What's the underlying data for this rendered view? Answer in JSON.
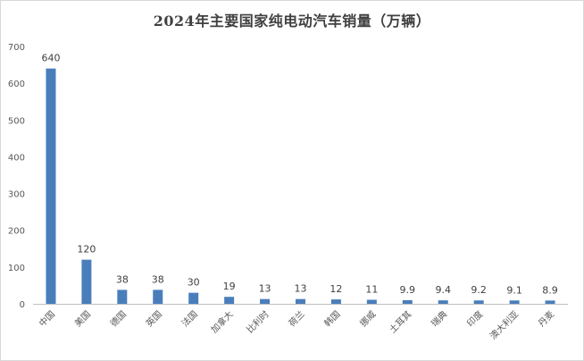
{
  "chart_data": {
    "type": "bar",
    "title": "2024年主要国家纯电动汽车销量（万辆）",
    "xlabel": "",
    "ylabel": "",
    "categories": [
      "中国",
      "美国",
      "德国",
      "英国",
      "法国",
      "加拿大",
      "比利时",
      "荷兰",
      "韩国",
      "挪威",
      "土耳其",
      "瑞典",
      "印度",
      "澳大利亚",
      "丹麦"
    ],
    "values": [
      640,
      120,
      38,
      38,
      30,
      19,
      13,
      13,
      12,
      11,
      9.9,
      9.4,
      9.2,
      9.1,
      8.9
    ],
    "ylim": [
      0,
      700
    ],
    "yticks": [
      0,
      100,
      200,
      300,
      400,
      500,
      600,
      700
    ],
    "grid": false,
    "legend": "none",
    "bar_color": "#4a7ebb",
    "axis_color": "#bfbfbf"
  }
}
